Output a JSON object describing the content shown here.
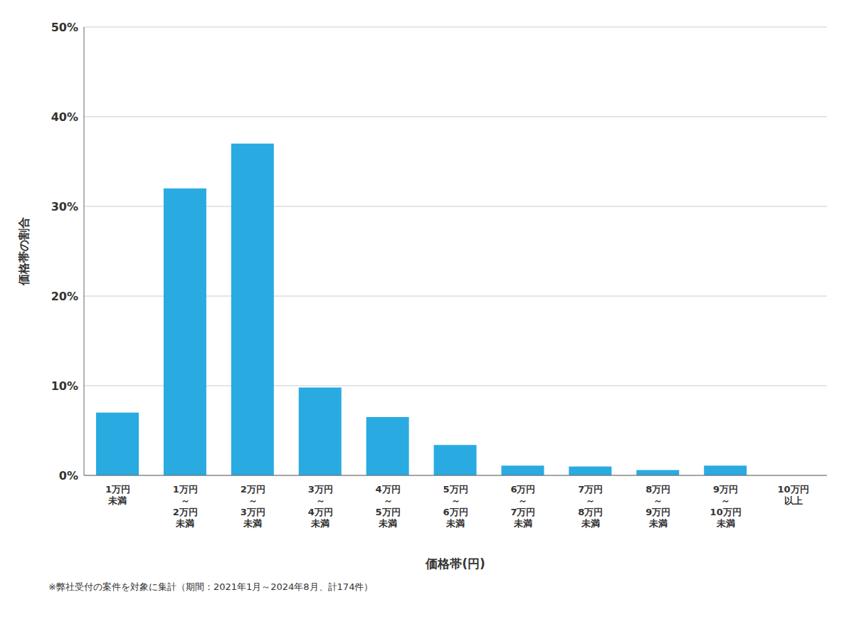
{
  "chart_data": {
    "type": "bar",
    "categories": [
      "1万円\n未満",
      "1万円\n～\n2万円\n未満",
      "2万円\n～\n3万円\n未満",
      "3万円\n～\n4万円\n未満",
      "4万円\n～\n5万円\n未満",
      "5万円\n～\n6万円\n未満",
      "6万円\n～\n7万円\n未満",
      "7万円\n～\n8万円\n未満",
      "8万円\n～\n9万円\n未満",
      "9万円\n～\n10万円\n未満",
      "10万円\n以上"
    ],
    "values": [
      7.0,
      32.0,
      37.0,
      9.8,
      6.5,
      3.4,
      1.1,
      1.0,
      0.6,
      1.1,
      0.0
    ],
    "color": "#29ABE2",
    "xlabel": "価格帯(円)",
    "ylabel": "価格帯の割合",
    "footnote": "※弊社受付の案件を対象に集計（期間：2021年1月～2024年8月、計174件）",
    "ylim": [
      0,
      50
    ],
    "yticks": [
      {
        "value": 0,
        "label": "0%"
      },
      {
        "value": 10,
        "label": "10%"
      },
      {
        "value": 20,
        "label": "20%"
      },
      {
        "value": 30,
        "label": "30%"
      },
      {
        "value": 40,
        "label": "40%"
      },
      {
        "value": 50,
        "label": "50%"
      }
    ],
    "grid": true
  }
}
